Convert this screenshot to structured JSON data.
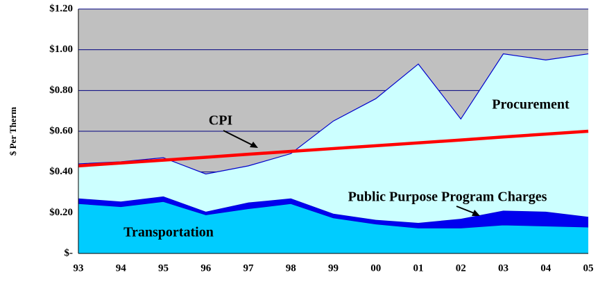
{
  "chart_data": {
    "type": "stacked_area",
    "y_label": "$ Per Therm",
    "categories": [
      "93",
      "94",
      "95",
      "96",
      "97",
      "98",
      "99",
      "00",
      "01",
      "02",
      "03",
      "04",
      "05"
    ],
    "series": [
      {
        "name": "Transportation",
        "color": "#00ccff",
        "values": [
          0.245,
          0.23,
          0.255,
          0.19,
          0.22,
          0.245,
          0.175,
          0.145,
          0.125,
          0.125,
          0.14,
          0.135,
          0.13
        ]
      },
      {
        "name": "Public Purpose Program Charges",
        "color": "#0000ee",
        "values": [
          0.025,
          0.025,
          0.025,
          0.015,
          0.03,
          0.025,
          0.02,
          0.02,
          0.025,
          0.045,
          0.07,
          0.07,
          0.05
        ]
      },
      {
        "name": "Procurement",
        "color": "#ccffff",
        "values": [
          0.17,
          0.195,
          0.19,
          0.185,
          0.18,
          0.22,
          0.455,
          0.595,
          0.78,
          0.49,
          0.77,
          0.745,
          0.8
        ]
      },
      {
        "name": "CPI",
        "color": "#ff0000",
        "type": "line",
        "values": [
          0.43,
          0.444,
          0.458,
          0.472,
          0.487,
          0.501,
          0.515,
          0.529,
          0.543,
          0.557,
          0.572,
          0.586,
          0.6
        ]
      }
    ],
    "ylim": [
      0,
      1.2
    ],
    "yticks": [
      {
        "value": 0,
        "label": "$-"
      },
      {
        "value": 0.2,
        "label": "$0.20"
      },
      {
        "value": 0.4,
        "label": "$0.40"
      },
      {
        "value": 0.6,
        "label": "$0.60"
      },
      {
        "value": 0.8,
        "label": "$0.80"
      },
      {
        "value": 1.0,
        "label": "$1.00"
      },
      {
        "value": 1.2,
        "label": "$1.20"
      }
    ],
    "grid": true
  }
}
